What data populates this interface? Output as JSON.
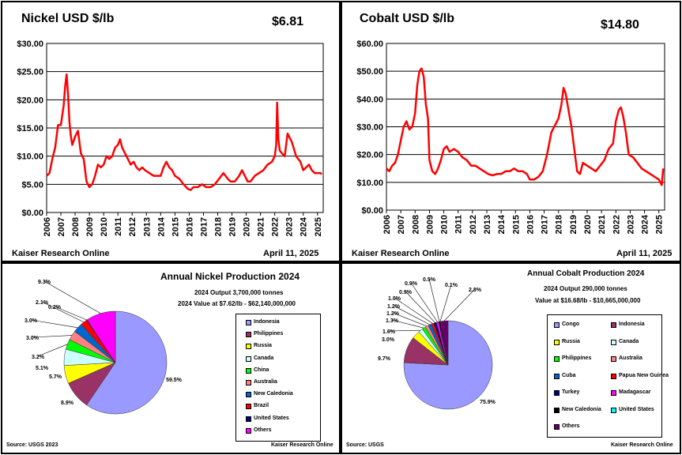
{
  "chart_data": [
    {
      "type": "line",
      "title": "Nickel USD $/lb",
      "current_price": "$6.81",
      "footer_left": "Kaiser Research Online",
      "footer_right": "April 11, 2025",
      "ylim": [
        0,
        30
      ],
      "y_ticks": [
        "$0.00",
        "$5.00",
        "$10.00",
        "$15.00",
        "$20.00",
        "$25.00",
        "$30.00"
      ],
      "x_ticks": [
        "2006",
        "2007",
        "2008",
        "2009",
        "2010",
        "2011",
        "2012",
        "2013",
        "2014",
        "2015",
        "2016",
        "2017",
        "2018",
        "2019",
        "2020",
        "2021",
        "2022",
        "2023",
        "2024",
        "2025"
      ],
      "xlim": [
        2006,
        2025.4
      ],
      "color": "#ff0000",
      "series": [
        {
          "x": [
            2006,
            2006.2,
            2006.4,
            2006.6,
            2006.8,
            2007.0,
            2007.2,
            2007.3,
            2007.4,
            2007.5,
            2007.6,
            2007.7,
            2007.8,
            2008.0,
            2008.2,
            2008.4,
            2008.6,
            2008.8,
            2009.0,
            2009.2,
            2009.4,
            2009.6,
            2009.8,
            2010.0,
            2010.2,
            2010.4,
            2010.6,
            2010.8,
            2011.0,
            2011.15,
            2011.3,
            2011.5,
            2011.7,
            2011.9,
            2012.1,
            2012.3,
            2012.5,
            2012.7,
            2012.9,
            2013.2,
            2013.5,
            2013.8,
            2014.0,
            2014.2,
            2014.4,
            2014.6,
            2014.8,
            2015.0,
            2015.3,
            2015.6,
            2015.9,
            2016.1,
            2016.3,
            2016.6,
            2016.9,
            2017.2,
            2017.5,
            2017.8,
            2018.1,
            2018.4,
            2018.7,
            2018.9,
            2019.2,
            2019.5,
            2019.7,
            2019.9,
            2020.1,
            2020.3,
            2020.6,
            2020.9,
            2021.2,
            2021.5,
            2021.8,
            2022.0,
            2022.1,
            2022.17,
            2022.25,
            2022.35,
            2022.5,
            2022.7,
            2022.8,
            2022.9,
            2023.0,
            2023.2,
            2023.5,
            2023.8,
            2024.0,
            2024.2,
            2024.4,
            2024.6,
            2024.8,
            2025.0,
            2025.2,
            2025.3
          ],
          "y": [
            6.5,
            7.0,
            9.5,
            11.5,
            15.5,
            15.5,
            19.0,
            22.5,
            24.5,
            21.0,
            16.0,
            13.5,
            12.0,
            13.5,
            14.5,
            10.5,
            9.5,
            5.5,
            4.5,
            5.0,
            6.5,
            8.5,
            8.0,
            8.5,
            10.0,
            9.5,
            10.0,
            11.5,
            12.0,
            13.0,
            11.5,
            10.5,
            9.5,
            8.5,
            9.0,
            8.0,
            7.5,
            8.0,
            7.5,
            7.0,
            6.5,
            6.5,
            6.5,
            8.0,
            9.0,
            8.0,
            7.5,
            6.5,
            6.0,
            5.0,
            4.2,
            4.0,
            4.5,
            4.5,
            5.0,
            4.5,
            4.5,
            5.0,
            6.0,
            7.0,
            6.0,
            5.5,
            5.5,
            6.5,
            7.5,
            6.5,
            5.5,
            5.5,
            6.5,
            7.0,
            7.5,
            8.5,
            9.0,
            10.0,
            12.0,
            19.5,
            13.0,
            11.0,
            10.5,
            10.0,
            12.0,
            14.0,
            13.5,
            12.5,
            10.0,
            9.0,
            7.5,
            8.0,
            8.5,
            7.5,
            7.0,
            7.0,
            7.0,
            6.8
          ]
        }
      ]
    },
    {
      "type": "line",
      "title": "Cobalt USD $/lb",
      "current_price": "$14.80",
      "footer_left": "Kaiser Research Online",
      "footer_right": "April 11, 2025",
      "ylim": [
        0,
        60
      ],
      "y_ticks": [
        "$0.00",
        "$10.00",
        "$20.00",
        "$30.00",
        "$40.00",
        "$50.00",
        "$60.00"
      ],
      "x_ticks": [
        "2006",
        "2007",
        "2008",
        "2009",
        "2010",
        "2011",
        "2012",
        "2013",
        "2014",
        "2015",
        "2016",
        "2017",
        "2018",
        "2019",
        "2020",
        "2021",
        "2022",
        "2023",
        "2024",
        "2025"
      ],
      "xlim": [
        2006,
        2025.4
      ],
      "color": "#ff0000",
      "series": [
        {
          "x": [
            2006,
            2006.2,
            2006.4,
            2006.6,
            2006.8,
            2007.0,
            2007.2,
            2007.4,
            2007.6,
            2007.8,
            2008.0,
            2008.15,
            2008.3,
            2008.45,
            2008.6,
            2008.75,
            2008.9,
            2009.0,
            2009.2,
            2009.4,
            2009.6,
            2009.8,
            2010.0,
            2010.2,
            2010.4,
            2010.7,
            2011.0,
            2011.3,
            2011.6,
            2011.9,
            2012.2,
            2012.5,
            2012.8,
            2013.1,
            2013.4,
            2013.7,
            2014.0,
            2014.3,
            2014.6,
            2014.9,
            2015.2,
            2015.5,
            2015.8,
            2016.0,
            2016.3,
            2016.6,
            2016.9,
            2017.2,
            2017.5,
            2017.8,
            2018.0,
            2018.2,
            2018.35,
            2018.5,
            2018.7,
            2018.9,
            2019.1,
            2019.3,
            2019.5,
            2019.7,
            2020.0,
            2020.3,
            2020.6,
            2020.9,
            2021.2,
            2021.5,
            2021.8,
            2022.0,
            2022.2,
            2022.35,
            2022.5,
            2022.7,
            2022.9,
            2023.2,
            2023.5,
            2023.8,
            2024.1,
            2024.4,
            2024.7,
            2025.0,
            2025.1,
            2025.2,
            2025.3
          ],
          "y": [
            15,
            14,
            16,
            17,
            20,
            25,
            30,
            32,
            29,
            30,
            35,
            45,
            50,
            51,
            48,
            38,
            33,
            18,
            14,
            13,
            15,
            18,
            22,
            23,
            21,
            22,
            21,
            19,
            18,
            16,
            16,
            15,
            14,
            13,
            12.5,
            13,
            13,
            14,
            14,
            15,
            14,
            14,
            13,
            11,
            11,
            12,
            14,
            20,
            28,
            31,
            33,
            38,
            44,
            42,
            36,
            30,
            22,
            14,
            13,
            17,
            16,
            15,
            14,
            16,
            18,
            22,
            24,
            32,
            36,
            37,
            34,
            28,
            20,
            19,
            17,
            15,
            14,
            13,
            12,
            11,
            10,
            9,
            15
          ]
        }
      ]
    },
    {
      "type": "pie",
      "title": "Annual Nickel Production 2024",
      "subtitle1": "2024 Output 3,700,000 tonnes",
      "subtitle2": "2024 Value at $7.62/lb   -  $62,140,000,000",
      "source": "Source: USGS 2023",
      "credit": "Kaiser Research Online",
      "slices": [
        {
          "name": "Indonesia",
          "value": 59.5,
          "label": "59.5%",
          "color": "#9999ff"
        },
        {
          "name": "Philippines",
          "value": 8.9,
          "label": "8.9%",
          "color": "#993366"
        },
        {
          "name": "Russia",
          "value": 5.7,
          "label": "5.7%",
          "color": "#ffff00"
        },
        {
          "name": "Canada",
          "value": 5.1,
          "label": "5.1%",
          "color": "#ccffff"
        },
        {
          "name": "China",
          "value": 3.2,
          "label": "3.2%",
          "color": "#00ff00"
        },
        {
          "name": "Australia",
          "value": 3.0,
          "label": "3.0%",
          "color": "#ff8080"
        },
        {
          "name": "New Caledonia",
          "value": 3.0,
          "label": "3.0%",
          "color": "#0066cc"
        },
        {
          "name": "Brazil",
          "value": 2.1,
          "label": "2.1%",
          "color": "#ff0000"
        },
        {
          "name": "United States",
          "value": 0.2,
          "label": "0.2%",
          "color": "#000080"
        },
        {
          "name": "Others",
          "value": 9.3,
          "label": "9.3%",
          "color": "#ff00ff"
        }
      ]
    },
    {
      "type": "pie",
      "title": "Annual Cobalt Production 2024",
      "subtitle1": "2024 Output 290,000 tonnes",
      "subtitle2": "Value at $16.68/lb  -  $10,665,000,000",
      "source": "Source: USGS",
      "credit": "Kaiser Research Online",
      "slices": [
        {
          "name": "Congo",
          "value": 75.9,
          "label": "75.9%",
          "color": "#9999ff"
        },
        {
          "name": "Indonesia",
          "value": 9.7,
          "label": "9.7%",
          "color": "#993366"
        },
        {
          "name": "Russia",
          "value": 3.0,
          "label": "3.0%",
          "color": "#ffff00"
        },
        {
          "name": "Canada",
          "value": 1.6,
          "label": "1.6%",
          "color": "#ccffff"
        },
        {
          "name": "Philippines",
          "value": 1.3,
          "label": "1.3%",
          "color": "#00ff00"
        },
        {
          "name": "Australia",
          "value": 1.2,
          "label": "1.2%",
          "color": "#ff8080"
        },
        {
          "name": "Cuba",
          "value": 1.2,
          "label": "1.2%",
          "color": "#0066cc"
        },
        {
          "name": "Papua New Guinea",
          "value": 1.0,
          "label": "1.0%",
          "color": "#ff0000"
        },
        {
          "name": "Turkey",
          "value": 0.9,
          "label": "0.9%",
          "color": "#000080"
        },
        {
          "name": "Madagascar",
          "value": 0.9,
          "label": "0.9%",
          "color": "#ff00ff"
        },
        {
          "name": "New Caledonia",
          "value": 0.5,
          "label": "0.5%",
          "color": "#000000"
        },
        {
          "name": "United States",
          "value": 0.1,
          "label": "0.1%",
          "color": "#00ffff"
        },
        {
          "name": "Others",
          "value": 2.8,
          "label": "2.8%",
          "color": "#660066"
        }
      ]
    }
  ]
}
